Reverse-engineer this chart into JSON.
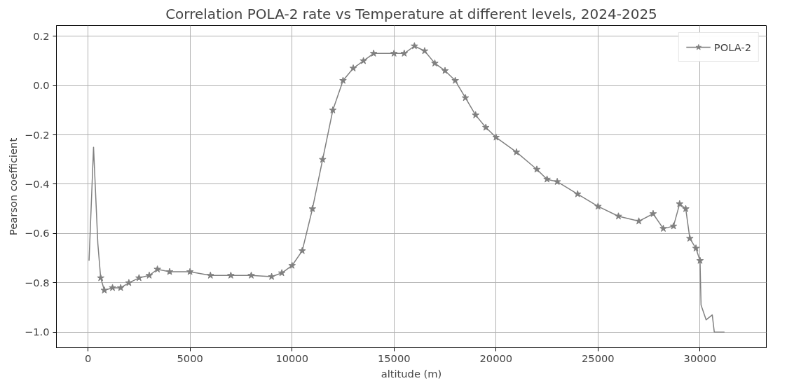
{
  "chart_data": {
    "type": "line",
    "title": "Correlation POLA-2 rate vs Temperature at different levels, 2024-2025",
    "xlabel": "altitude (m)",
    "ylabel": "Pearson coefficient",
    "xlim": [
      -1550,
      33250
    ],
    "ylim": [
      -1.063,
      0.243
    ],
    "xticks": [
      0,
      5000,
      10000,
      15000,
      20000,
      25000,
      30000
    ],
    "yticks": [
      {
        "value": -1.0,
        "label": "−1.0"
      },
      {
        "value": -0.8,
        "label": "−0.8"
      },
      {
        "value": -0.6,
        "label": "−0.6"
      },
      {
        "value": -0.4,
        "label": "−0.4"
      },
      {
        "value": -0.2,
        "label": "−0.2"
      },
      {
        "value": 0.0,
        "label": "0.0"
      },
      {
        "value": 0.2,
        "label": "0.2"
      }
    ],
    "grid": true,
    "legend": "top right",
    "line_style": "solid",
    "series": [
      {
        "color": "#808080",
        "marker": "none",
        "x": [
          50,
          270,
          480,
          620
        ],
        "values": [
          -0.71,
          -0.25,
          -0.64,
          -0.78
        ]
      },
      {
        "name": "POLA-2",
        "color": "#808080",
        "marker": "star",
        "x": [
          620,
          800,
          1200,
          1600,
          2000,
          2500,
          3000,
          3400,
          4000,
          5000,
          6000,
          7000,
          8000,
          9000,
          9500,
          10000,
          10500,
          11000,
          11500,
          12000,
          12500,
          13000,
          13500,
          14000,
          15000,
          15500,
          16000,
          16500,
          17000,
          17500,
          18000,
          18500,
          19000,
          19500,
          20000,
          21000,
          22000,
          22500,
          23000,
          24000,
          25000,
          26000,
          27000,
          27700,
          28200,
          28700,
          29000,
          29300,
          29500,
          29800,
          30000
        ],
        "values": [
          -0.78,
          -0.83,
          -0.82,
          -0.82,
          -0.8,
          -0.78,
          -0.77,
          -0.745,
          -0.755,
          -0.755,
          -0.77,
          -0.77,
          -0.77,
          -0.775,
          -0.76,
          -0.73,
          -0.67,
          -0.5,
          -0.3,
          -0.1,
          0.02,
          0.07,
          0.1,
          0.13,
          0.13,
          0.13,
          0.16,
          0.14,
          0.09,
          0.06,
          0.02,
          -0.05,
          -0.12,
          -0.17,
          -0.21,
          -0.27,
          -0.34,
          -0.38,
          -0.39,
          -0.44,
          -0.49,
          -0.53,
          -0.55,
          -0.52,
          -0.58,
          -0.57,
          -0.48,
          -0.5,
          -0.62,
          -0.66,
          -0.71
        ]
      },
      {
        "color": "#808080",
        "marker": "none",
        "x": [
          30000,
          30050,
          30300,
          30600,
          30700,
          31200
        ],
        "values": [
          -0.71,
          -0.89,
          -0.95,
          -0.93,
          -1.0,
          -1.0
        ]
      }
    ]
  }
}
